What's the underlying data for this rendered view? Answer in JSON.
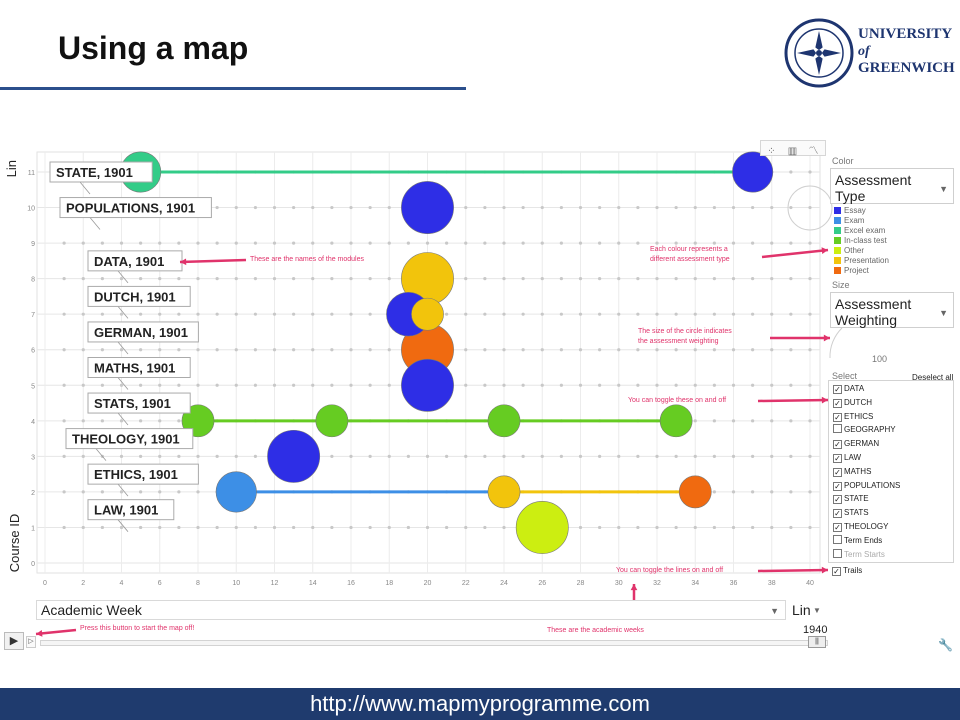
{
  "slide": {
    "title": "Using a map",
    "footer_url": "http://www.mapmyprogramme.com"
  },
  "logo": {
    "line1": "UNIVERSITY",
    "line2": "of",
    "line3": "GREENWICH"
  },
  "controls": {
    "color_label": "Color",
    "color_value_line1": "Assessment",
    "color_value_line2": "Type",
    "size_label": "Size",
    "size_value_line1": "Assessment",
    "size_value_line2": "Weighting",
    "size_max_value": "100",
    "select_label": "Select",
    "deselect_all": "Deselect all",
    "trails_label": "Trails",
    "x_axis_select": "Academic Week",
    "x_scale": "Lin",
    "y_scale": "Lin",
    "time_value": "1940"
  },
  "colors": {
    "essay": "#2e2ee6",
    "exam": "#3d8fe6",
    "excel_exam": "#33cc88",
    "in_class_test": "#66cc22",
    "other": "#ccee11",
    "presentation": "#f2c40c",
    "project": "#f06a10",
    "annotation": "#e0336b",
    "footer": "#1f3b6e",
    "title_rule": "#2b4f8c"
  },
  "chart_data": {
    "type": "scatter",
    "xlabel": "",
    "ylabel": "Course ID",
    "xlim": [
      0,
      40
    ],
    "ylim": [
      0,
      11
    ],
    "x_ticks": [
      0,
      2,
      4,
      6,
      8,
      10,
      12,
      14,
      16,
      18,
      20,
      22,
      24,
      26,
      28,
      30,
      32,
      34,
      36,
      38,
      40
    ],
    "y_ticks": [
      0,
      1,
      2,
      3,
      4,
      5,
      6,
      7,
      8,
      9,
      10,
      11
    ],
    "grid": true,
    "legend": [
      {
        "name": "Essay",
        "color": "#2e2ee6"
      },
      {
        "name": "Exam",
        "color": "#3d8fe6"
      },
      {
        "name": "Excel exam",
        "color": "#33cc88"
      },
      {
        "name": "In-class test",
        "color": "#66cc22"
      },
      {
        "name": "Other",
        "color": "#ccee11"
      },
      {
        "name": "Presentation",
        "color": "#f2c40c"
      },
      {
        "name": "Project",
        "color": "#f06a10"
      }
    ],
    "module_labels": [
      {
        "text": "STATE, 1901",
        "y": 11
      },
      {
        "text": "POPULATIONS, 1901",
        "y": 10
      },
      {
        "text": "DATA, 1901",
        "y": 8.5
      },
      {
        "text": "DUTCH, 1901",
        "y": 7.5
      },
      {
        "text": "GERMAN, 1901",
        "y": 6.5
      },
      {
        "text": "MATHS, 1901",
        "y": 5.5
      },
      {
        "text": "STATS, 1901",
        "y": 4.5
      },
      {
        "text": "THEOLOGY, 1901",
        "y": 3.5
      },
      {
        "text": "ETHICS, 1901",
        "y": 2.5
      },
      {
        "text": "LAW, 1901",
        "y": 1.5
      }
    ],
    "points": [
      {
        "x": 5,
        "y": 11,
        "type": "Excel exam",
        "weight": 40
      },
      {
        "x": 37,
        "y": 11,
        "type": "Essay",
        "weight": 40
      },
      {
        "x": 20,
        "y": 10,
        "type": "Essay",
        "weight": 80
      },
      {
        "x": 20,
        "y": 8,
        "type": "Presentation",
        "weight": 80
      },
      {
        "x": 19,
        "y": 7,
        "type": "Essay",
        "weight": 50
      },
      {
        "x": 20,
        "y": 7,
        "type": "Presentation",
        "weight": 20
      },
      {
        "x": 20,
        "y": 6,
        "type": "Project",
        "weight": 80
      },
      {
        "x": 20,
        "y": 5,
        "type": "Essay",
        "weight": 80
      },
      {
        "x": 8,
        "y": 4,
        "type": "In-class test",
        "weight": 20
      },
      {
        "x": 15,
        "y": 4,
        "type": "In-class test",
        "weight": 20
      },
      {
        "x": 24,
        "y": 4,
        "type": "In-class test",
        "weight": 20
      },
      {
        "x": 33,
        "y": 4,
        "type": "In-class test",
        "weight": 20
      },
      {
        "x": 13,
        "y": 3,
        "type": "Essay",
        "weight": 80
      },
      {
        "x": 10,
        "y": 2,
        "type": "Exam",
        "weight": 40
      },
      {
        "x": 24,
        "y": 2,
        "type": "Presentation",
        "weight": 20
      },
      {
        "x": 34,
        "y": 2,
        "type": "Project",
        "weight": 20
      },
      {
        "x": 26,
        "y": 1,
        "type": "Other",
        "weight": 80
      }
    ],
    "trails": [
      {
        "y": 11,
        "from": 5,
        "to": 37,
        "color": "#33cc88"
      },
      {
        "y": 4,
        "from": 8,
        "to": 33,
        "color": "#66cc22"
      },
      {
        "y": 2,
        "from": 10,
        "to": 24,
        "color": "#3d8fe6"
      },
      {
        "y": 2,
        "from": 24,
        "to": 34,
        "color": "#f2c40c"
      }
    ]
  },
  "select_items": [
    {
      "label": "DATA",
      "checked": true
    },
    {
      "label": "DUTCH",
      "checked": true
    },
    {
      "label": "ETHICS",
      "checked": true
    },
    {
      "label": "GEOGRAPHY",
      "checked": false
    },
    {
      "label": "GERMAN",
      "checked": true
    },
    {
      "label": "LAW",
      "checked": true
    },
    {
      "label": "MATHS",
      "checked": true
    },
    {
      "label": "POPULATIONS",
      "checked": true
    },
    {
      "label": "STATE",
      "checked": true
    },
    {
      "label": "STATS",
      "checked": true
    },
    {
      "label": "THEOLOGY",
      "checked": true
    },
    {
      "label": "Term Ends",
      "checked": false
    },
    {
      "label": "Term Starts",
      "checked": false
    }
  ],
  "annotations": {
    "names": "These are the names of the modules",
    "colour_line1": "Each colour represents a",
    "colour_line2": "different assessment type",
    "size_line1": "The size of the circle indicates",
    "size_line2": "the assessment weighting",
    "toggle_modules": "You can toggle these on and off",
    "toggle_lines": "You can toggle the lines on and off",
    "play": "Press this button to start the map off!",
    "weeks": "These are the academic weeks"
  }
}
